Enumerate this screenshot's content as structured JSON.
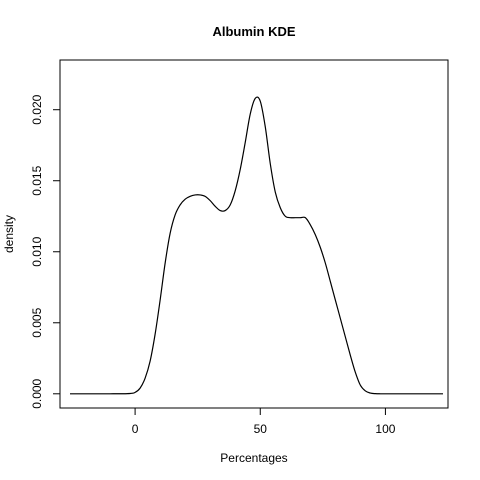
{
  "chart_data": {
    "type": "line",
    "title": "Albumin  KDE",
    "xlabel": "Percentages",
    "ylabel": "density",
    "xlim": [
      -30,
      125
    ],
    "ylim": [
      -0.001,
      0.0235
    ],
    "x_ticks": [
      0,
      50,
      100
    ],
    "x_tick_labels": [
      "0",
      "50",
      "100"
    ],
    "y_ticks": [
      0.0,
      0.005,
      0.01,
      0.015,
      0.02
    ],
    "y_tick_labels": [
      "0.000",
      "0.005",
      "0.010",
      "0.015",
      "0.020"
    ],
    "grid": false,
    "legend": "none",
    "series": [
      {
        "x": [
          -26,
          -10,
          -2,
          0,
          2,
          4,
          6,
          8,
          10,
          12,
          14,
          16,
          18,
          20,
          22,
          24,
          26,
          28,
          30,
          32,
          34,
          36,
          38,
          40,
          42,
          44,
          46,
          48,
          50,
          52,
          54,
          56,
          58,
          60,
          62,
          64,
          66,
          68,
          70,
          72,
          74,
          76,
          78,
          80,
          82,
          84,
          86,
          88,
          90,
          92,
          94,
          96,
          98,
          100,
          110,
          123
        ],
        "y": [
          0.0,
          0.0,
          2e-05,
          0.0001,
          0.0004,
          0.0011,
          0.0023,
          0.0042,
          0.0066,
          0.0092,
          0.0113,
          0.0126,
          0.0133,
          0.0137,
          0.0139,
          0.014,
          0.014,
          0.0139,
          0.0136,
          0.0132,
          0.0129,
          0.0129,
          0.0133,
          0.0143,
          0.0158,
          0.0177,
          0.0197,
          0.0208,
          0.0206,
          0.0188,
          0.0162,
          0.0142,
          0.0131,
          0.0125,
          0.0124,
          0.0124,
          0.0124,
          0.0124,
          0.0119,
          0.0112,
          0.0103,
          0.0092,
          0.0079,
          0.0066,
          0.0053,
          0.004,
          0.0027,
          0.0015,
          0.0006,
          0.0002,
          5e-05,
          1e-05,
          0.0,
          0.0,
          0.0,
          0.0
        ]
      }
    ]
  }
}
